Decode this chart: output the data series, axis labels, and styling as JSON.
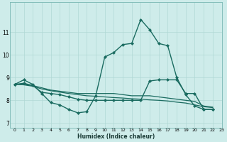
{
  "xlabel": "Humidex (Indice chaleur)",
  "bg_color": "#ceecea",
  "grid_color": "#b0d8d5",
  "line_color": "#1a6b60",
  "xlim": [
    -0.5,
    23
  ],
  "ylim": [
    6.8,
    12.3
  ],
  "xticks": [
    0,
    1,
    2,
    3,
    4,
    5,
    6,
    7,
    8,
    9,
    10,
    11,
    12,
    13,
    14,
    15,
    16,
    17,
    18,
    19,
    20,
    21,
    22,
    23
  ],
  "yticks": [
    7,
    8,
    9,
    10,
    11
  ],
  "series": [
    {
      "x": [
        0,
        1,
        2,
        3,
        4,
        5,
        6,
        7,
        8,
        9,
        10,
        11,
        12,
        13,
        14,
        15,
        16,
        17,
        18,
        19,
        20,
        21,
        22
      ],
      "y": [
        8.7,
        8.9,
        8.7,
        8.3,
        7.9,
        7.8,
        7.6,
        7.45,
        7.5,
        8.2,
        9.9,
        10.1,
        10.45,
        10.5,
        11.55,
        11.1,
        10.5,
        10.4,
        9.0,
        8.25,
        7.75,
        7.6,
        7.6
      ],
      "marker": true,
      "linewidth": 1.0
    },
    {
      "x": [
        0,
        1,
        2,
        3,
        4,
        5,
        6,
        7,
        8,
        9,
        10,
        11,
        12,
        13,
        14,
        15,
        16,
        17,
        18,
        19,
        20,
        21,
        22
      ],
      "y": [
        8.7,
        8.75,
        8.65,
        8.35,
        8.3,
        8.25,
        8.15,
        8.05,
        8.0,
        8.0,
        8.0,
        8.0,
        8.0,
        8.0,
        8.0,
        8.85,
        8.9,
        8.9,
        8.9,
        8.3,
        8.3,
        7.6,
        7.6
      ],
      "marker": true,
      "linewidth": 1.0
    },
    {
      "x": [
        0,
        1,
        2,
        3,
        4,
        5,
        6,
        7,
        8,
        9,
        10,
        11,
        12,
        13,
        14,
        15,
        16,
        17,
        18,
        19,
        20,
        21,
        22
      ],
      "y": [
        8.7,
        8.7,
        8.65,
        8.55,
        8.45,
        8.4,
        8.35,
        8.3,
        8.3,
        8.3,
        8.3,
        8.3,
        8.25,
        8.2,
        8.2,
        8.2,
        8.15,
        8.1,
        8.05,
        8.0,
        7.95,
        7.75,
        7.7
      ],
      "marker": false,
      "linewidth": 0.9
    },
    {
      "x": [
        0,
        1,
        2,
        3,
        4,
        5,
        6,
        7,
        8,
        9,
        10,
        11,
        12,
        13,
        14,
        15,
        16,
        17,
        18,
        19,
        20,
        21,
        22
      ],
      "y": [
        8.7,
        8.68,
        8.62,
        8.5,
        8.42,
        8.36,
        8.3,
        8.25,
        8.2,
        8.18,
        8.15,
        8.12,
        8.1,
        8.07,
        8.05,
        8.02,
        8.0,
        7.97,
        7.92,
        7.88,
        7.8,
        7.72,
        7.68
      ],
      "marker": false,
      "linewidth": 0.9
    }
  ]
}
